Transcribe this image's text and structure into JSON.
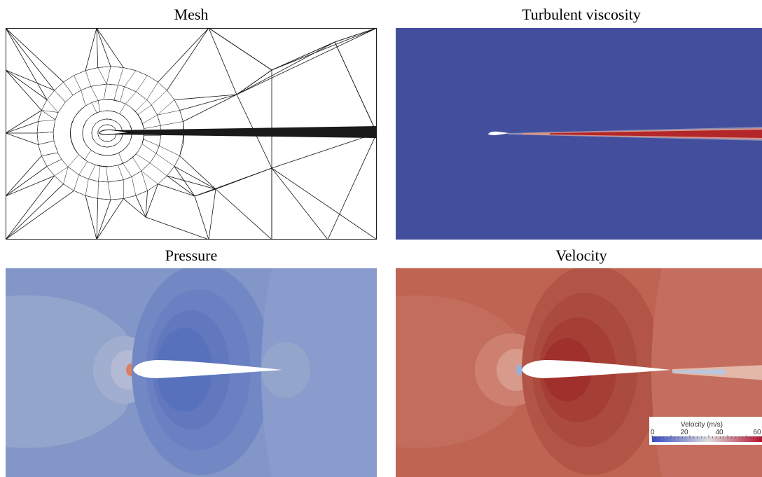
{
  "panels": {
    "mesh": {
      "title": "Mesh"
    },
    "viscosity": {
      "title": "Turbulent viscosity"
    },
    "pressure": {
      "title": "Pressure"
    },
    "velocity": {
      "title": "Velocity",
      "colorbar": {
        "title": "Velocity (m/s)",
        "ticks": [
          "0",
          "20",
          "40",
          "60"
        ]
      }
    }
  },
  "colors": {
    "viscosity_background": "#434f9d",
    "wake_red": "#b3262a",
    "pressure_background": "#8396c8",
    "velocity_background": "#bf6453"
  }
}
